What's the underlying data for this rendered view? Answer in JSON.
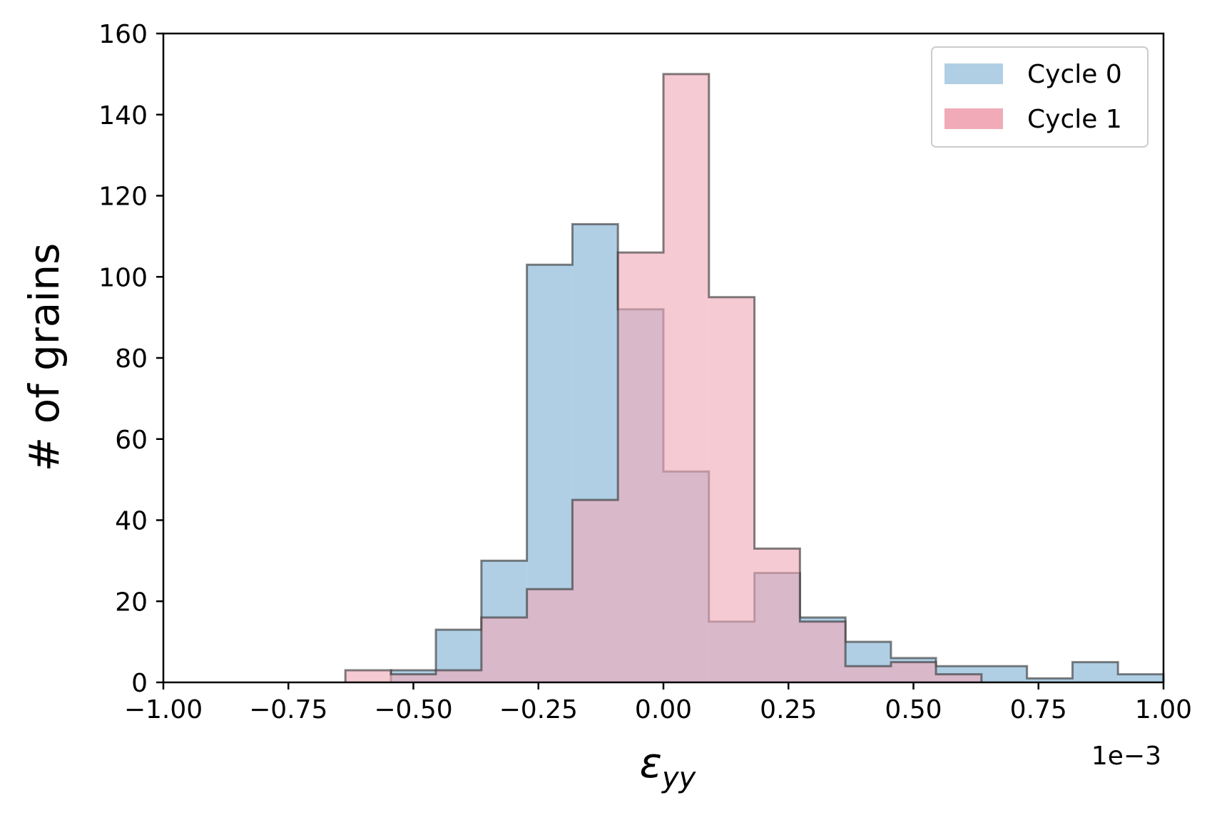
{
  "chart_data": {
    "type": "bar",
    "subtype": "step-histogram",
    "title": "",
    "xlabel": "ε",
    "xlabel_subscript": "yy",
    "ylabel": "# of grains",
    "x_offset_label": "1e−3",
    "xlim": [
      -1.0,
      1.0
    ],
    "ylim": [
      0,
      160
    ],
    "xticks": [
      -1.0,
      -0.75,
      -0.5,
      -0.25,
      0.0,
      0.25,
      0.5,
      0.75,
      1.0
    ],
    "xtick_labels": [
      "−1.00",
      "−0.75",
      "−0.50",
      "−0.25",
      "0.00",
      "0.25",
      "0.50",
      "0.75",
      "1.00"
    ],
    "yticks": [
      0,
      20,
      40,
      60,
      80,
      100,
      120,
      140,
      160
    ],
    "ytick_labels": [
      "0",
      "20",
      "40",
      "60",
      "80",
      "100",
      "120",
      "140",
      "160"
    ],
    "grid": false,
    "legend_position": "top-right",
    "series": [
      {
        "name": "Cycle 0",
        "color": "#b0cfe4",
        "bins": [
          {
            "x0": -0.545,
            "x1": -0.455,
            "count": 3
          },
          {
            "x0": -0.455,
            "x1": -0.364,
            "count": 13
          },
          {
            "x0": -0.364,
            "x1": -0.273,
            "count": 30
          },
          {
            "x0": -0.273,
            "x1": -0.182,
            "count": 103
          },
          {
            "x0": -0.182,
            "x1": -0.091,
            "count": 113
          },
          {
            "x0": -0.091,
            "x1": 0.0,
            "count": 92
          },
          {
            "x0": 0.0,
            "x1": 0.091,
            "count": 52
          },
          {
            "x0": 0.091,
            "x1": 0.182,
            "count": 15
          },
          {
            "x0": 0.182,
            "x1": 0.273,
            "count": 27
          },
          {
            "x0": 0.273,
            "x1": 0.364,
            "count": 16
          },
          {
            "x0": 0.364,
            "x1": 0.455,
            "count": 10
          },
          {
            "x0": 0.455,
            "x1": 0.545,
            "count": 6
          },
          {
            "x0": 0.545,
            "x1": 0.727,
            "count": 4
          },
          {
            "x0": 0.727,
            "x1": 0.818,
            "count": 1
          },
          {
            "x0": 0.818,
            "x1": 0.909,
            "count": 5
          },
          {
            "x0": 0.909,
            "x1": 1.0,
            "count": 2
          }
        ]
      },
      {
        "name": "Cycle 1",
        "color": "#f0aab8",
        "bins": [
          {
            "x0": -0.636,
            "x1": -0.545,
            "count": 3
          },
          {
            "x0": -0.545,
            "x1": -0.455,
            "count": 2
          },
          {
            "x0": -0.455,
            "x1": -0.364,
            "count": 3
          },
          {
            "x0": -0.364,
            "x1": -0.273,
            "count": 16
          },
          {
            "x0": -0.273,
            "x1": -0.182,
            "count": 23
          },
          {
            "x0": -0.182,
            "x1": -0.091,
            "count": 45
          },
          {
            "x0": -0.091,
            "x1": 0.0,
            "count": 106
          },
          {
            "x0": 0.0,
            "x1": 0.091,
            "count": 150
          },
          {
            "x0": 0.091,
            "x1": 0.182,
            "count": 95
          },
          {
            "x0": 0.182,
            "x1": 0.273,
            "count": 33
          },
          {
            "x0": 0.273,
            "x1": 0.364,
            "count": 15
          },
          {
            "x0": 0.364,
            "x1": 0.455,
            "count": 4
          },
          {
            "x0": 0.455,
            "x1": 0.545,
            "count": 5
          },
          {
            "x0": 0.545,
            "x1": 0.636,
            "count": 2
          }
        ]
      }
    ]
  }
}
